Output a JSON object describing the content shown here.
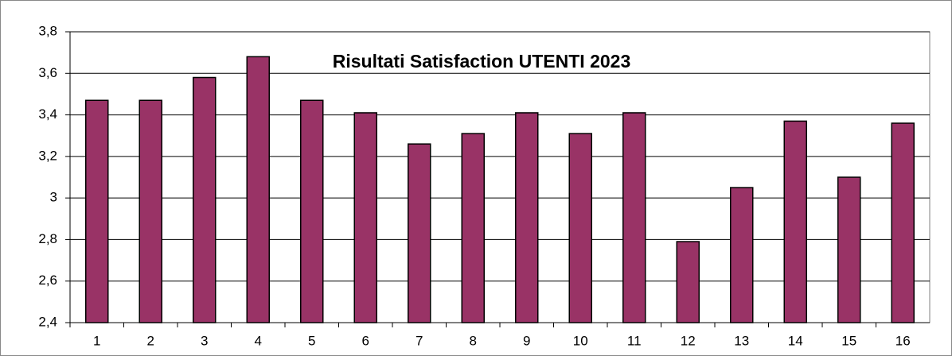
{
  "chart_data": {
    "type": "bar",
    "title": "Risultati Satisfaction UTENTI 2023",
    "categories": [
      "1",
      "2",
      "3",
      "4",
      "5",
      "6",
      "7",
      "8",
      "9",
      "10",
      "11",
      "12",
      "13",
      "14",
      "15",
      "16"
    ],
    "values": [
      3.47,
      3.47,
      3.58,
      3.68,
      3.47,
      3.41,
      3.26,
      3.31,
      3.41,
      3.31,
      3.41,
      2.79,
      3.05,
      3.37,
      3.1,
      3.36
    ],
    "color": "#993366",
    "ylim": [
      2.4,
      3.8
    ],
    "yticks": [
      {
        "value": 2.4,
        "label": "2,4"
      },
      {
        "value": 2.6,
        "label": "2,6"
      },
      {
        "value": 2.8,
        "label": "2,8"
      },
      3,
      {
        "value": 3.2,
        "label": "3,2"
      },
      {
        "value": 3.4,
        "label": "3,4"
      },
      {
        "value": 3.6,
        "label": "3,6"
      },
      {
        "value": 3.8,
        "label": "3,8"
      }
    ],
    "grid": true
  }
}
